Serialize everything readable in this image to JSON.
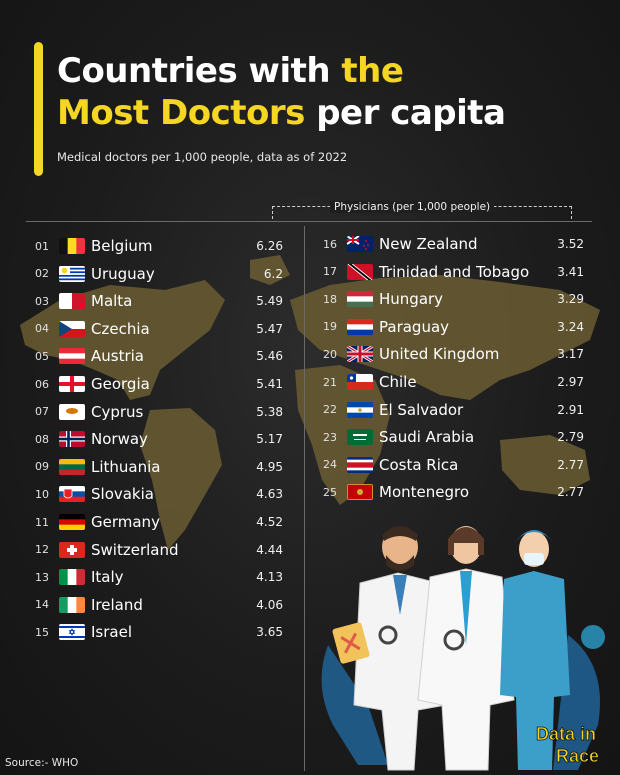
{
  "header": {
    "title_line1_white": "Countries with ",
    "title_line1_yellow": "the",
    "title_line2_yellow": "Most Doctors",
    "title_line2_white": " per capita",
    "subtitle": "Medical doctors per 1,000 people, data as of 2022",
    "column_label": "Physicians (per 1,000 people)"
  },
  "colors": {
    "accent": "#f5d623",
    "background": "#1c1c1c",
    "map": "#6b5d33"
  },
  "chart_data": {
    "type": "table",
    "title": "Countries with the Most Doctors per capita",
    "subtitle": "Medical doctors per 1,000 people, data as of 2022",
    "value_label": "Physicians (per 1,000 people)",
    "rows": [
      {
        "rank": "01",
        "country": "Belgium",
        "value": "6.26",
        "flag": "belgium-flag"
      },
      {
        "rank": "02",
        "country": "Uruguay",
        "value": "6.2",
        "flag": "uruguay-flag"
      },
      {
        "rank": "03",
        "country": "Malta",
        "value": "5.49",
        "flag": "malta-flag"
      },
      {
        "rank": "04",
        "country": "Czechia",
        "value": "5.47",
        "flag": "czechia-flag"
      },
      {
        "rank": "05",
        "country": "Austria",
        "value": "5.46",
        "flag": "austria-flag"
      },
      {
        "rank": "06",
        "country": "Georgia",
        "value": "5.41",
        "flag": "georgia-flag"
      },
      {
        "rank": "07",
        "country": "Cyprus",
        "value": "5.38",
        "flag": "cyprus-flag"
      },
      {
        "rank": "08",
        "country": "Norway",
        "value": "5.17",
        "flag": "norway-flag"
      },
      {
        "rank": "09",
        "country": "Lithuania",
        "value": "4.95",
        "flag": "lithuania-flag"
      },
      {
        "rank": "10",
        "country": "Slovakia",
        "value": "4.63",
        "flag": "slovakia-flag"
      },
      {
        "rank": "11",
        "country": "Germany",
        "value": "4.52",
        "flag": "germany-flag"
      },
      {
        "rank": "12",
        "country": "Switzerland",
        "value": "4.44",
        "flag": "switzerland-flag"
      },
      {
        "rank": "13",
        "country": "Italy",
        "value": "4.13",
        "flag": "italy-flag"
      },
      {
        "rank": "14",
        "country": "Ireland",
        "value": "4.06",
        "flag": "ireland-flag"
      },
      {
        "rank": "15",
        "country": "Israel",
        "value": "3.65",
        "flag": "israel-flag"
      },
      {
        "rank": "16",
        "country": "New Zealand",
        "value": "3.52",
        "flag": "new-zealand-flag"
      },
      {
        "rank": "17",
        "country": "Trinidad and Tobago",
        "value": "3.41",
        "flag": "trinidad-and-tobago-flag"
      },
      {
        "rank": "18",
        "country": "Hungary",
        "value": "3.29",
        "flag": "hungary-flag"
      },
      {
        "rank": "19",
        "country": "Paraguay",
        "value": "3.24",
        "flag": "paraguay-flag"
      },
      {
        "rank": "20",
        "country": "United Kingdom",
        "value": "3.17",
        "flag": "united-kingdom-flag"
      },
      {
        "rank": "21",
        "country": "Chile",
        "value": "2.97",
        "flag": "chile-flag"
      },
      {
        "rank": "22",
        "country": "El Salvador",
        "value": "2.91",
        "flag": "el-salvador-flag"
      },
      {
        "rank": "23",
        "country": "Saudi Arabia",
        "value": "2.79",
        "flag": "saudi-arabia-flag"
      },
      {
        "rank": "24",
        "country": "Costa Rica",
        "value": "2.77",
        "flag": "costa-rica-flag"
      },
      {
        "rank": "25",
        "country": "Montenegro",
        "value": "2.77",
        "flag": "montenegro-flag"
      }
    ]
  },
  "logo": {
    "line1": "Data in",
    "line2": "Race"
  },
  "source": "Source:- WHO"
}
